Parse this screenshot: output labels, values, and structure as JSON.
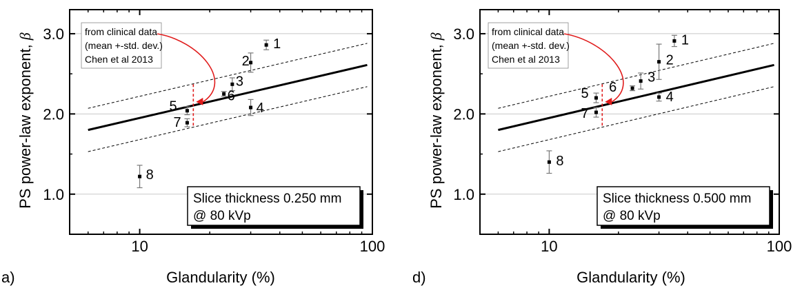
{
  "chart_data": [
    {
      "panel_label": "a)",
      "type": "scatter",
      "xlabel": "Glandularity (%)",
      "ylabel": "PS power-law exponent, ",
      "ylabel_symbol": "β",
      "x_scale": "log",
      "xlim": [
        5,
        100
      ],
      "ylim": [
        0.5,
        3.3
      ],
      "x_ticks": [
        10,
        100
      ],
      "x_ticklabels": [
        "10",
        "100"
      ],
      "y_ticks": [
        1.0,
        2.0,
        3.0
      ],
      "y_ticklabels": [
        "1.0",
        "2.0",
        "3.0"
      ],
      "grid": "horizontal at y ticks",
      "points": [
        {
          "label": "1",
          "x": 35.0,
          "y": 2.86,
          "err": 0.06
        },
        {
          "label": "2",
          "x": 30.0,
          "y": 2.64,
          "err": 0.12
        },
        {
          "label": "3",
          "x": 25.0,
          "y": 2.37,
          "err": 0.08
        },
        {
          "label": "4",
          "x": 30.0,
          "y": 2.08,
          "err": 0.1
        },
        {
          "label": "5",
          "x": 16.0,
          "y": 2.04,
          "err": 0.05
        },
        {
          "label": "6",
          "x": 23.0,
          "y": 2.25,
          "err": 0.03
        },
        {
          "label": "7",
          "x": 16.0,
          "y": 1.89,
          "err": 0.05
        },
        {
          "label": "8",
          "x": 10.0,
          "y": 1.22,
          "err": 0.14
        }
      ],
      "fit_line": {
        "x": [
          6,
          95
        ],
        "y": [
          1.8,
          2.61
        ]
      },
      "band_upper": {
        "x": [
          6,
          95
        ],
        "y": [
          2.07,
          2.88
        ]
      },
      "band_lower": {
        "x": [
          6,
          95
        ],
        "y": [
          1.53,
          2.34
        ]
      },
      "clinical": {
        "x": 17.0,
        "y_low": 1.84,
        "y_high": 2.37,
        "color": "#e01b1b"
      },
      "annotation": [
        "from clinical data",
        "(mean +-std. dev.)",
        "Chen et al 2013"
      ],
      "legend_text": [
        "Slice thickness 0.250 mm",
        "@ 80 kVp"
      ]
    },
    {
      "panel_label": "d)",
      "type": "scatter",
      "xlabel": "Glandularity (%)",
      "ylabel": "PS power-law exponent, ",
      "ylabel_symbol": "β",
      "x_scale": "log",
      "xlim": [
        5,
        100
      ],
      "ylim": [
        0.5,
        3.3
      ],
      "x_ticks": [
        10,
        100
      ],
      "x_ticklabels": [
        "10",
        "100"
      ],
      "y_ticks": [
        1.0,
        2.0,
        3.0
      ],
      "y_ticklabels": [
        "1.0",
        "2.0",
        "3.0"
      ],
      "grid": "horizontal at y ticks",
      "points": [
        {
          "label": "1",
          "x": 35.0,
          "y": 2.91,
          "err": 0.07
        },
        {
          "label": "2",
          "x": 30.0,
          "y": 2.65,
          "err": 0.22
        },
        {
          "label": "3",
          "x": 25.0,
          "y": 2.41,
          "err": 0.1
        },
        {
          "label": "4",
          "x": 30.0,
          "y": 2.21,
          "err": 0.05
        },
        {
          "label": "5",
          "x": 16.0,
          "y": 2.2,
          "err": 0.06
        },
        {
          "label": "6",
          "x": 23.0,
          "y": 2.32,
          "err": 0.03
        },
        {
          "label": "7",
          "x": 16.0,
          "y": 2.02,
          "err": 0.06
        },
        {
          "label": "8",
          "x": 10.0,
          "y": 1.4,
          "err": 0.14
        }
      ],
      "fit_line": {
        "x": [
          6,
          95
        ],
        "y": [
          1.8,
          2.61
        ]
      },
      "band_upper": {
        "x": [
          6,
          95
        ],
        "y": [
          2.07,
          2.88
        ]
      },
      "band_lower": {
        "x": [
          6,
          95
        ],
        "y": [
          1.53,
          2.34
        ]
      },
      "clinical": {
        "x": 17.0,
        "y_low": 1.84,
        "y_high": 2.37,
        "color": "#e01b1b"
      },
      "annotation": [
        "from clinical data",
        "(mean +-std. dev.)",
        "Chen et al 2013"
      ],
      "legend_text": [
        "Slice thickness 0.500 mm",
        "@ 80 kVp"
      ]
    }
  ]
}
